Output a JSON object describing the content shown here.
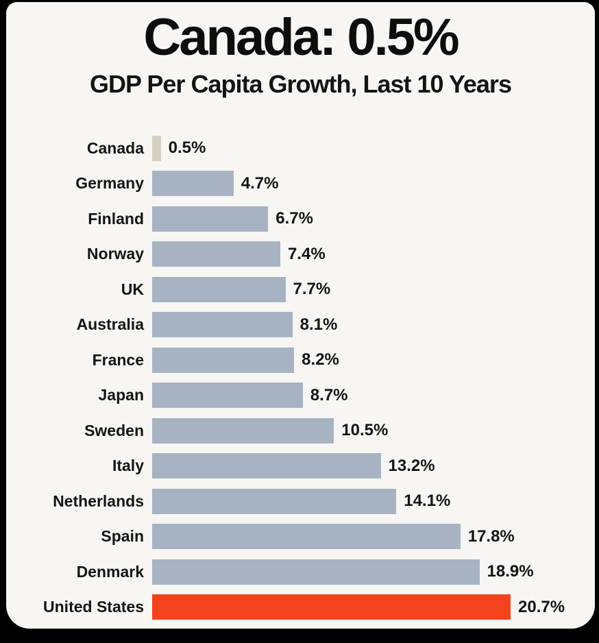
{
  "frame": {
    "background": "#000000"
  },
  "card": {
    "background": "#f7f6f3"
  },
  "chart_data": {
    "type": "bar",
    "orientation": "horizontal",
    "title": "Canada: 0.5%",
    "subtitle": "GDP Per Capita Growth, Last 10 Years",
    "categories": [
      "Canada",
      "Germany",
      "Finland",
      "Norway",
      "UK",
      "Australia",
      "France",
      "Japan",
      "Sweden",
      "Italy",
      "Netherlands",
      "Spain",
      "Denmark",
      "United States"
    ],
    "values": [
      0.5,
      4.7,
      6.7,
      7.4,
      7.7,
      8.1,
      8.2,
      8.7,
      10.5,
      13.2,
      14.1,
      17.8,
      18.9,
      20.7
    ],
    "value_labels": [
      "0.5%",
      "4.7%",
      "6.7%",
      "7.4%",
      "7.7%",
      "8.1%",
      "8.2%",
      "8.7%",
      "10.5%",
      "13.2%",
      "14.1%",
      "17.8%",
      "18.9%",
      "20.7%"
    ],
    "xlim": [
      0,
      20.7
    ],
    "grid": false,
    "legend": "none",
    "bar_colors": {
      "default": "#a7b3c2",
      "Canada": "#d5cfc2",
      "United States": "#f4421d"
    },
    "text_color": "#141414"
  }
}
